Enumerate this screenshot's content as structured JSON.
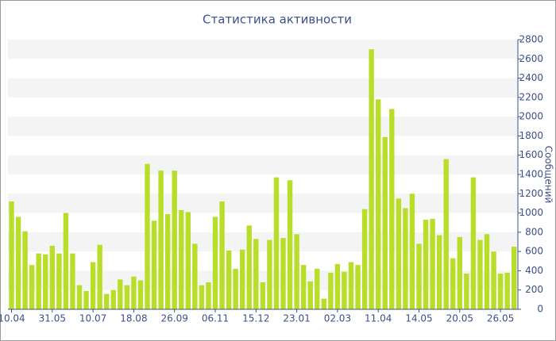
{
  "chart_data": {
    "type": "bar",
    "title": "Статистика активности",
    "y_label": "Сообщений",
    "categories": [
      "10.04",
      null,
      null,
      null,
      null,
      null,
      "31.05",
      null,
      null,
      null,
      null,
      null,
      "10.07",
      null,
      null,
      null,
      null,
      null,
      "18.08",
      null,
      null,
      null,
      null,
      null,
      "26.09",
      null,
      null,
      null,
      null,
      null,
      "06.11",
      null,
      null,
      null,
      null,
      null,
      "15.12",
      null,
      null,
      null,
      null,
      null,
      "23.01",
      null,
      null,
      null,
      null,
      null,
      "02.03",
      null,
      null,
      null,
      null,
      null,
      "11.04",
      null,
      null,
      null,
      null,
      null,
      "14.05",
      null,
      null,
      null,
      null,
      null,
      "20.05",
      null,
      null,
      null,
      null,
      null,
      "26.05",
      null,
      null
    ],
    "values": [
      1120,
      960,
      810,
      460,
      580,
      570,
      660,
      580,
      1000,
      580,
      250,
      190,
      490,
      670,
      160,
      200,
      310,
      250,
      340,
      300,
      1510,
      920,
      1440,
      990,
      1440,
      1030,
      1010,
      680,
      250,
      280,
      960,
      1120,
      610,
      420,
      620,
      870,
      730,
      280,
      720,
      1370,
      740,
      1340,
      780,
      460,
      290,
      420,
      110,
      380,
      470,
      390,
      490,
      460,
      1040,
      2700,
      2180,
      1790,
      2080,
      1150,
      1050,
      1200,
      680,
      930,
      940,
      770,
      1560,
      530,
      750,
      370,
      1370,
      720,
      780,
      600,
      370,
      380,
      650
    ],
    "color": "#b8de2a",
    "ylim": [
      0,
      2800
    ],
    "yticks": [
      0,
      200,
      400,
      600,
      800,
      1000,
      1200,
      1400,
      1600,
      1800,
      2000,
      2200,
      2400,
      2600,
      2800
    ],
    "grid": true
  }
}
